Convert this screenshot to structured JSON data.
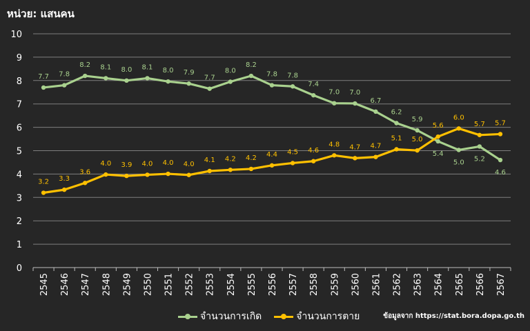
{
  "chart_data": {
    "type": "line",
    "title": "",
    "unit_label": "หน่วย: แสนคน",
    "xlabel": "",
    "ylabel": "",
    "ylim": [
      0,
      10
    ],
    "yticks": [
      0,
      1,
      2,
      3,
      4,
      5,
      6,
      7,
      8,
      9,
      10
    ],
    "grid": true,
    "legend_position": "bottom",
    "categories": [
      "2545",
      "2546",
      "2547",
      "2548",
      "2549",
      "2550",
      "2551",
      "2552",
      "2553",
      "2554",
      "2555",
      "2556",
      "2557",
      "2558",
      "2559",
      "2560",
      "2561",
      "2562",
      "2563",
      "2564",
      "2565",
      "2566",
      "2567"
    ],
    "series": [
      {
        "name": "จำนวนการเกิด",
        "color": "#a9d18e",
        "values": [
          7.7,
          7.8,
          8.2,
          8.1,
          8.0,
          8.1,
          7.96,
          7.87,
          7.65,
          7.95,
          8.2,
          7.8,
          7.75,
          7.37,
          7.03,
          7.02,
          6.67,
          6.18,
          5.87,
          5.4,
          5.03,
          5.18,
          4.6
        ],
        "labels": [
          "7.7",
          "7.8",
          "8.2",
          "8.1",
          "8.0",
          "8.1",
          "8.0",
          "7.9",
          "7.7",
          "8.0",
          "8.2",
          "7.8",
          "7.8",
          "7.4",
          "7.0",
          "7.0",
          "6.7",
          "6.2",
          "5.9",
          "5.4",
          "5.0",
          "5.2",
          "4.6"
        ]
      },
      {
        "name": "จำนวนการตาย",
        "color": "#ffc000",
        "values": [
          3.2,
          3.33,
          3.62,
          3.98,
          3.92,
          3.97,
          4.01,
          3.96,
          4.13,
          4.18,
          4.22,
          4.37,
          4.47,
          4.55,
          4.8,
          4.68,
          4.73,
          5.06,
          5.01,
          5.6,
          5.95,
          5.67,
          5.71
        ],
        "labels": [
          "3.2",
          "3.3",
          "3.6",
          "4.0",
          "3.9",
          "4.0",
          "4.0",
          "4.0",
          "4.1",
          "4.2",
          "4.2",
          "4.4",
          "4.5",
          "4.6",
          "4.8",
          "4.7",
          "4.7",
          "5.1",
          "5.0",
          "5.6",
          "6.0",
          "5.7",
          "5.7"
        ]
      }
    ]
  },
  "source_note": "ข้อมูลจาก https://stat.bora.dopa.go.th"
}
